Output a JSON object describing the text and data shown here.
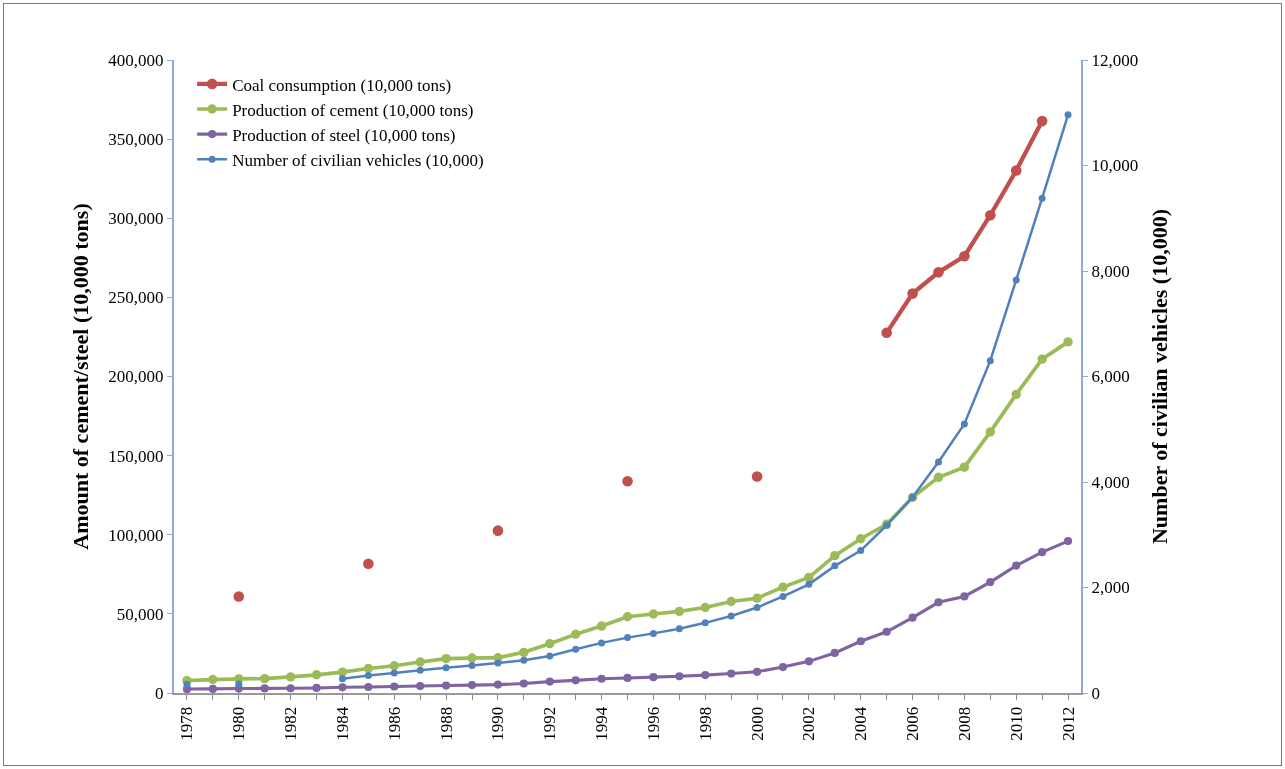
{
  "chart_data": {
    "type": "line",
    "ylabel": "Amount of cement/steel (10,000 tons)",
    "y2label": "Number of civilian vehicles (10,000)",
    "legend": "top left",
    "marker": "circle",
    "x": [
      1978,
      1979,
      1980,
      1981,
      1982,
      1983,
      1984,
      1985,
      1986,
      1987,
      1988,
      1989,
      1990,
      1991,
      1992,
      1993,
      1994,
      1995,
      1996,
      1997,
      1998,
      1999,
      2000,
      2001,
      2002,
      2003,
      2004,
      2005,
      2006,
      2007,
      2008,
      2009,
      2010,
      2011,
      2012
    ],
    "xlim": [
      1977.5,
      2012.5
    ],
    "xticks": [
      1978,
      {
        "value": 1979,
        "label": null
      },
      1980,
      {
        "value": 1981,
        "label": null
      },
      1982,
      {
        "value": 1983,
        "label": null
      },
      1984,
      {
        "value": 1985,
        "label": null
      },
      1986,
      {
        "value": 1987,
        "label": null
      },
      1988,
      {
        "value": 1989,
        "label": null
      },
      1990,
      {
        "value": 1991,
        "label": null
      },
      1992,
      {
        "value": 1993,
        "label": null
      },
      1994,
      {
        "value": 1995,
        "label": null
      },
      1996,
      {
        "value": 1997,
        "label": null
      },
      1998,
      {
        "value": 1999,
        "label": null
      },
      2000,
      {
        "value": 2001,
        "label": null
      },
      2002,
      {
        "value": 2003,
        "label": null
      },
      2004,
      {
        "value": 2005,
        "label": null
      },
      2006,
      {
        "value": 2007,
        "label": null
      },
      2008,
      {
        "value": 2009,
        "label": null
      },
      2010,
      {
        "value": 2011,
        "label": null
      },
      2012
    ],
    "ylim": [
      0,
      400000
    ],
    "yticks": [
      0,
      {
        "value": 50000,
        "label": "50,000"
      },
      {
        "value": 100000,
        "label": "100,000"
      },
      {
        "value": 150000,
        "label": "150,000"
      },
      {
        "value": 200000,
        "label": "200,000"
      },
      {
        "value": 250000,
        "label": "250,000"
      },
      {
        "value": 300000,
        "label": "300,000"
      },
      {
        "value": 350000,
        "label": "350,000"
      },
      {
        "value": 400000,
        "label": "400,000"
      }
    ],
    "y2lim": [
      0,
      12000
    ],
    "y2ticks": [
      0,
      {
        "value": 2000,
        "label": "2,000"
      },
      {
        "value": 4000,
        "label": "4,000"
      },
      {
        "value": 6000,
        "label": "6,000"
      },
      {
        "value": 8000,
        "label": "8,000"
      },
      {
        "value": 10000,
        "label": "10,000"
      },
      {
        "value": 12000,
        "label": "12,000"
      }
    ],
    "series": [
      {
        "name": "Coal consumption (10,000 tons)",
        "color": "#c0504d",
        "values": [
          null,
          null,
          61000,
          null,
          null,
          null,
          null,
          81700,
          null,
          null,
          null,
          null,
          102600,
          null,
          null,
          null,
          null,
          133800,
          null,
          null,
          null,
          null,
          136800,
          null,
          null,
          null,
          null,
          227600,
          252400,
          265800,
          276000,
          301900,
          330200,
          361400,
          null
        ]
      },
      {
        "name": "Production of cement (10,000 tons)",
        "color": "#9bbb59",
        "values": [
          7800,
          8500,
          8900,
          9100,
          10200,
          11500,
          13200,
          15500,
          17200,
          19600,
          21700,
          22100,
          22300,
          25700,
          31200,
          37100,
          42300,
          48200,
          49900,
          51600,
          54000,
          57800,
          59900,
          66900,
          73000,
          86800,
          97500,
          106600,
          123600,
          136300,
          142700,
          165000,
          188700,
          211000,
          221900
        ]
      },
      {
        "name": "Production of steel (10,000 tons)",
        "color": "#8064a2",
        "values": [
          2500,
          2600,
          2800,
          2900,
          3000,
          3200,
          3600,
          3800,
          4100,
          4400,
          4700,
          5000,
          5300,
          6000,
          7200,
          8000,
          9000,
          9500,
          10000,
          10600,
          11300,
          12300,
          13400,
          16400,
          20000,
          25300,
          32700,
          38700,
          47600,
          57300,
          61000,
          70100,
          80500,
          89000,
          96000
        ]
      },
      {
        "name": "Number of civilian vehicles (10,000)",
        "color": "#4f81bd",
        "axis": "y2",
        "values": [
          160,
          null,
          170,
          null,
          null,
          null,
          270,
          330,
          380,
          430,
          480,
          520,
          570,
          620,
          700,
          830,
          950,
          1050,
          1130,
          1220,
          1330,
          1460,
          1620,
          1830,
          2060,
          2410,
          2700,
          3180,
          3710,
          4380,
          5100,
          6300,
          7830,
          9380,
          10960
        ]
      }
    ]
  }
}
